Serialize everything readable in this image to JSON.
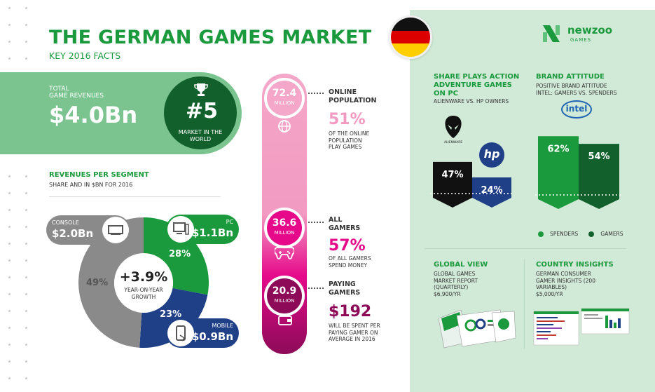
{
  "header": {
    "title": "THE GERMAN GAMES MARKET",
    "subtitle": "KEY 2016 FACTS",
    "logo_text": "newzoo",
    "logo_sub": "GAMES"
  },
  "revenue": {
    "label_line1": "TOTAL",
    "label_line2": "GAME REVENUES",
    "value": "$4.0Bn",
    "rank": "#5",
    "rank_label": "MARKET IN THE WORLD"
  },
  "segments": {
    "heading": "REVENUES PER SEGMENT",
    "subheading": "SHARE AND IN $BN FOR 2016",
    "center_value": "+3.9%",
    "center_label": "YEAR-ON-YEAR GROWTH",
    "items": [
      {
        "name": "CONSOLE",
        "value": "$2.0Bn",
        "share_label": "49%",
        "share": 49,
        "color": "#8a8a8a"
      },
      {
        "name": "PC",
        "value": "$1.1Bn",
        "share_label": "28%",
        "share": 28,
        "color": "#1a9a3c"
      },
      {
        "name": "MOBILE",
        "value": "$0.9Bn",
        "share_label": "23%",
        "share": 23,
        "color": "#1f3f86"
      }
    ]
  },
  "funnel": [
    {
      "number": "72.4",
      "unit": "MILLION",
      "head1": "ONLINE",
      "head2": "POPULATION",
      "big": "51%",
      "small": [
        "OF THE ONLINE",
        "POPULATION",
        "PLAY GAMES"
      ],
      "color": "#f4a7c8",
      "big_color": "#f29ac2",
      "icon": "globe-icon"
    },
    {
      "number": "36.6",
      "unit": "MILLION",
      "head1": "ALL",
      "head2": "GAMERS",
      "big": "57%",
      "small": [
        "OF ALL GAMERS",
        "SPEND MONEY"
      ],
      "color": "#e60a8a",
      "big_color": "#e60a8a",
      "icon": "gamepad-icon"
    },
    {
      "number": "20.9",
      "unit": "MILLION",
      "head1": "PAYING",
      "head2": "GAMERS",
      "big": "$192",
      "small": [
        "WILL BE SPENT PER",
        "PAYING GAMER ON",
        "AVERAGE IN 2016"
      ],
      "color": "#8c0a58",
      "big_color": "#8c0a58",
      "icon": "wallet-icon"
    }
  ],
  "action_games": {
    "heading": [
      "SHARE PLAYS ACTION",
      "ADVENTURE GAMES",
      "ON PC"
    ],
    "sub": "ALIENWARE VS. HP OWNERS",
    "alienware_label": "ALIENWARE",
    "hp_label": "hp",
    "bars": [
      {
        "name": "ALIENWARE",
        "label": "47%",
        "value": 47,
        "color": "#111111"
      },
      {
        "name": "HP",
        "label": "24%",
        "value": 24,
        "color": "#1f3f86"
      }
    ]
  },
  "brand_attitude": {
    "heading": "BRAND ATTITUDE",
    "sub": [
      "POSITIVE BRAND ATTITUDE",
      "INTEL: GAMERS VS. SPENDERS"
    ],
    "intel_label": "intel",
    "bars": [
      {
        "name": "SPENDERS",
        "label": "62%",
        "value": 62,
        "color": "#1a9a3c"
      },
      {
        "name": "GAMERS",
        "label": "54%",
        "value": 54,
        "color": "#12612d"
      }
    ],
    "legend": [
      "SPENDERS",
      "GAMERS"
    ]
  },
  "global_view": {
    "heading": "GLOBAL VIEW",
    "sub": [
      "GLOBAL GAMES",
      "MARKET REPORT",
      "(QUARTERLY)",
      "$6,900/YR"
    ]
  },
  "country_insights": {
    "heading": "COUNTRY INSIGHTS",
    "sub": [
      "GERMAN CONSUMER",
      "GAMER INSIGHTS (200",
      "VARIABLES)",
      "$5,000/YR"
    ]
  }
}
